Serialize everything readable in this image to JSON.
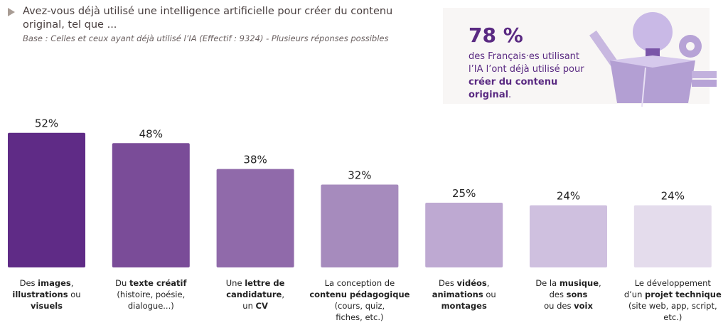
{
  "header": {
    "question": "Avez-vous déjà utilisé une intelligence artificielle pour créer du contenu original, tel que ...",
    "base": "Base : Celles et ceux ayant déjà utilisé l’IA (Effectif : 9324) - Plusieurs réponses possibles"
  },
  "callout": {
    "value": "78 %",
    "text_line1": "des Français·es utilisant",
    "text_line2": "l’IA l’ont déjà utilisé pour",
    "text_bold": "créer du contenu original",
    "text_end": "."
  },
  "colors": {
    "accent": "#5a2a82"
  },
  "chart_data": {
    "type": "bar",
    "ylim": [
      0,
      55
    ],
    "grid": false,
    "values": [
      52,
      48,
      38,
      32,
      25,
      24,
      24
    ],
    "value_labels": [
      "52%",
      "48%",
      "38%",
      "32%",
      "25%",
      "24%",
      "24%"
    ],
    "colors": [
      "#5f2b86",
      "#7a4c98",
      "#906aaa",
      "#a68bbd",
      "#bea9d2",
      "#cfc0df",
      "#e4dcec"
    ],
    "categories": [
      [
        [
          [
            "Des ",
            false
          ],
          [
            "images",
            true
          ],
          [
            ",",
            false
          ]
        ],
        [
          [
            "illustrations",
            true
          ],
          [
            " ou",
            false
          ]
        ],
        [
          [
            "visuels",
            true
          ]
        ]
      ],
      [
        [
          [
            "Du ",
            false
          ],
          [
            "texte créatif",
            true
          ]
        ],
        [
          [
            "(histoire, poésie,",
            false
          ]
        ],
        [
          [
            "dialogue...)",
            false
          ]
        ]
      ],
      [
        [
          [
            "Une ",
            false
          ],
          [
            "lettre de",
            true
          ]
        ],
        [
          [
            "candidature",
            true
          ],
          [
            ",",
            false
          ]
        ],
        [
          [
            "un ",
            false
          ],
          [
            "CV",
            true
          ]
        ]
      ],
      [
        [
          [
            "La conception de",
            false
          ]
        ],
        [
          [
            "contenu pédagogique",
            true
          ]
        ],
        [
          [
            "(cours, quiz,",
            false
          ]
        ],
        [
          [
            "fiches, etc.)",
            false
          ]
        ]
      ],
      [
        [
          [
            "Des ",
            false
          ],
          [
            "vidéos",
            true
          ],
          [
            ",",
            false
          ]
        ],
        [
          [
            "animations",
            true
          ],
          [
            " ou",
            false
          ]
        ],
        [
          [
            "montages",
            true
          ]
        ]
      ],
      [
        [
          [
            "De la ",
            false
          ],
          [
            "musique",
            true
          ],
          [
            ",",
            false
          ]
        ],
        [
          [
            "des ",
            false
          ],
          [
            "sons",
            true
          ]
        ],
        [
          [
            "ou des ",
            false
          ],
          [
            "voix",
            true
          ]
        ]
      ],
      [
        [
          [
            "Le développement",
            false
          ]
        ],
        [
          [
            "d’un ",
            false
          ],
          [
            "projet technique",
            true
          ]
        ],
        [
          [
            "(site web, app, script,",
            false
          ]
        ],
        [
          [
            "etc.)",
            false
          ]
        ]
      ]
    ]
  }
}
